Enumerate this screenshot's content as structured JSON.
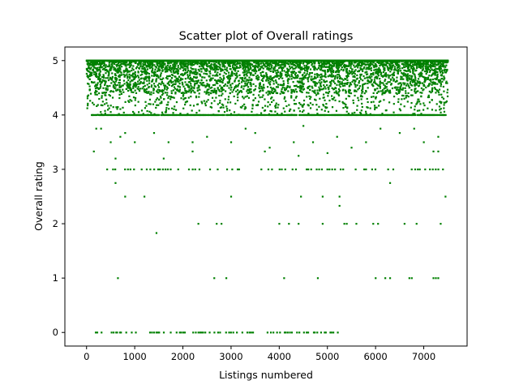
{
  "chart_data": {
    "type": "scatter",
    "title": "Scatter plot of Overall ratings",
    "xlabel": "Listings numbered",
    "ylabel": "Overall rating",
    "xlim": [
      -450,
      7900
    ],
    "ylim": [
      -0.25,
      5.25
    ],
    "xticks": [
      0,
      1000,
      2000,
      3000,
      4000,
      5000,
      6000,
      7000
    ],
    "yticks": [
      0,
      1,
      2,
      3,
      4,
      5
    ],
    "point_color": "#008000",
    "grid": false,
    "n_points_approx": 7500,
    "series": [
      {
        "dense_band": {
          "x": [
            0,
            7500
          ],
          "y": [
            4.4,
            5.0
          ]
        },
        "rows": [
          {
            "y": 5.0,
            "x": [
              0,
              7500
            ]
          },
          {
            "y": 4.0,
            "x": [
              100,
              7450
            ]
          },
          {
            "y": 3.0,
            "x": [
              300,
              7450
            ]
          },
          {
            "y": 0.0,
            "x": [
              100,
              5200
            ]
          }
        ],
        "points": [
          [
            650,
            1.0
          ],
          [
            2650,
            1.0
          ],
          [
            2900,
            1.0
          ],
          [
            4100,
            1.0
          ],
          [
            4800,
            1.0
          ],
          [
            6000,
            1.0
          ],
          [
            6200,
            1.0
          ],
          [
            6300,
            1.0
          ],
          [
            6700,
            1.0
          ],
          [
            6750,
            1.0
          ],
          [
            7200,
            1.0
          ],
          [
            7250,
            1.0
          ],
          [
            7300,
            1.0
          ],
          [
            2320,
            2.0
          ],
          [
            2700,
            2.0
          ],
          [
            2800,
            2.0
          ],
          [
            4000,
            2.0
          ],
          [
            4200,
            2.0
          ],
          [
            4400,
            2.0
          ],
          [
            4900,
            2.0
          ],
          [
            5350,
            2.0
          ],
          [
            5400,
            2.0
          ],
          [
            5600,
            2.0
          ],
          [
            5950,
            2.0
          ],
          [
            6050,
            2.0
          ],
          [
            6600,
            2.0
          ],
          [
            6850,
            2.0
          ],
          [
            7350,
            2.0
          ],
          [
            1450,
            1.83
          ],
          [
            5250,
            2.33
          ],
          [
            800,
            2.5
          ],
          [
            1200,
            2.5
          ],
          [
            3000,
            2.5
          ],
          [
            4450,
            2.5
          ],
          [
            4900,
            2.5
          ],
          [
            5250,
            2.5
          ],
          [
            7450,
            2.5
          ],
          [
            6300,
            2.75
          ],
          [
            600,
            2.75
          ],
          [
            150,
            3.33
          ],
          [
            600,
            3.2
          ],
          [
            1600,
            3.2
          ],
          [
            2200,
            3.33
          ],
          [
            3700,
            3.33
          ],
          [
            4400,
            3.25
          ],
          [
            5000,
            3.3
          ],
          [
            5500,
            3.4
          ],
          [
            7200,
            3.33
          ],
          [
            7300,
            3.33
          ],
          [
            200,
            3.75
          ],
          [
            300,
            3.75
          ],
          [
            500,
            3.5
          ],
          [
            700,
            3.6
          ],
          [
            800,
            3.67
          ],
          [
            1000,
            3.5
          ],
          [
            1400,
            3.67
          ],
          [
            1700,
            3.5
          ],
          [
            2200,
            3.5
          ],
          [
            2500,
            3.6
          ],
          [
            3000,
            3.5
          ],
          [
            3300,
            3.75
          ],
          [
            3500,
            3.67
          ],
          [
            3800,
            3.4
          ],
          [
            4300,
            3.5
          ],
          [
            4500,
            3.8
          ],
          [
            4700,
            3.5
          ],
          [
            5200,
            3.6
          ],
          [
            5800,
            3.5
          ],
          [
            6100,
            3.75
          ],
          [
            6500,
            3.67
          ],
          [
            6800,
            3.75
          ],
          [
            7000,
            3.5
          ],
          [
            7300,
            3.6
          ]
        ]
      }
    ]
  }
}
